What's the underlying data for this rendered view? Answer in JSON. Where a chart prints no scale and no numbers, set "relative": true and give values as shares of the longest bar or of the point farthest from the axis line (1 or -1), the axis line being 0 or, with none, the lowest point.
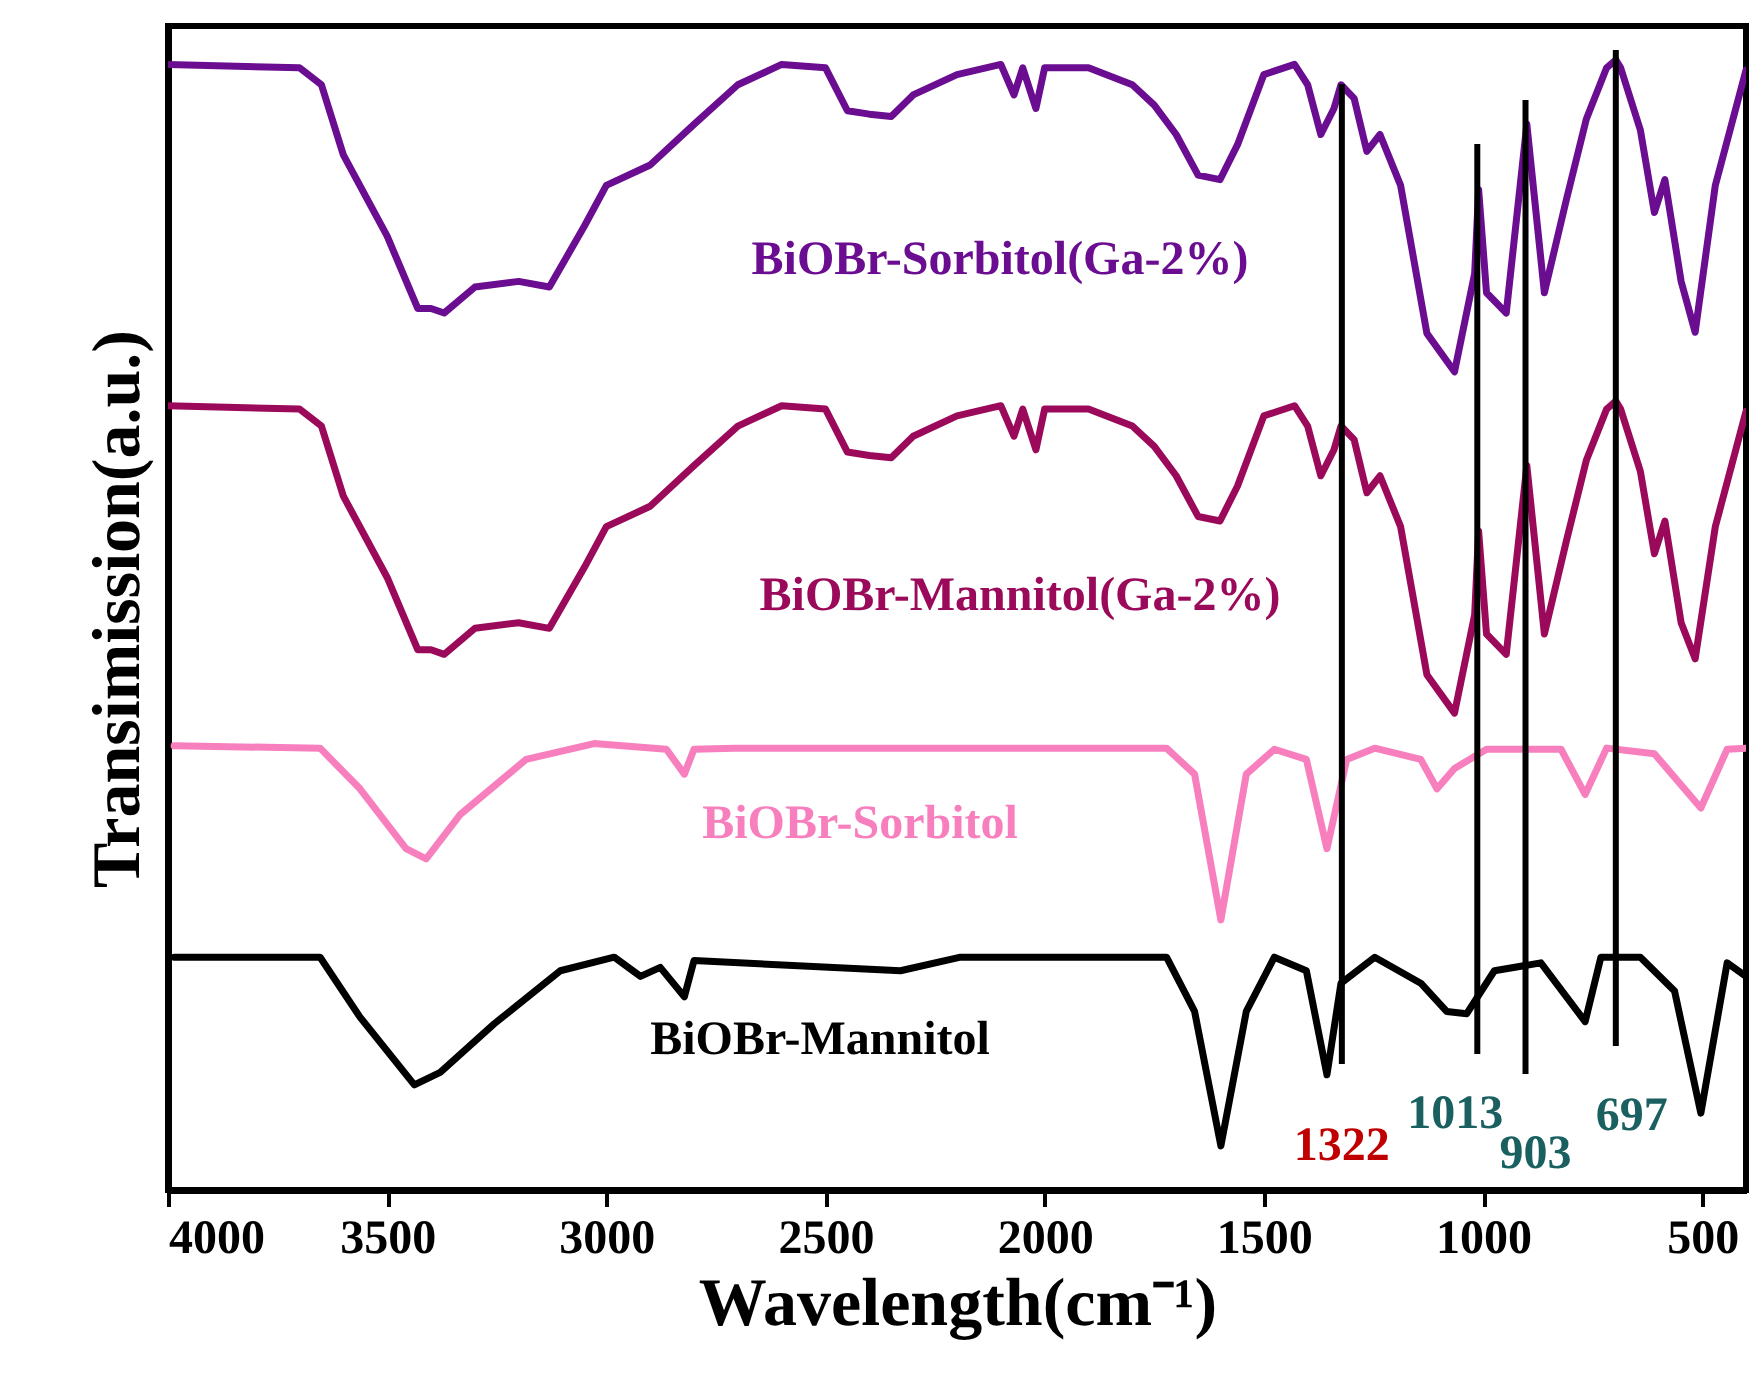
{
  "chart_data": {
    "type": "line",
    "relative": true,
    "xlabel": "Wavelength(cm⁻¹)",
    "ylabel": "Transimission(a.u.)",
    "xlim": [
      4000,
      400
    ],
    "xticks": [
      4000,
      3500,
      3000,
      2500,
      2000,
      1500,
      1000,
      500
    ],
    "tick_labels": "x",
    "grid": false,
    "marker": "none",
    "line_style": "solid",
    "series": [
      {
        "name": "BiOBr-Sorbitol(Ga-2%)",
        "color": "#6a0d91",
        "x": [
          4000,
          3700,
          3650,
          3600,
          3500,
          3430,
          3400,
          3370,
          3300,
          3200,
          3130,
          3050,
          3000,
          2900,
          2800,
          2700,
          2600,
          2500,
          2450,
          2400,
          2350,
          2300,
          2200,
          2100,
          2070,
          2050,
          2020,
          2000,
          1900,
          1800,
          1750,
          1700,
          1650,
          1600,
          1560,
          1500,
          1430,
          1400,
          1370,
          1340,
          1324,
          1294,
          1265,
          1235,
          1188,
          1128,
          1065,
          1019,
          1010,
          992,
          947,
          900,
          860,
          810,
          764,
          718,
          697,
          686,
          641,
          609,
          585,
          548,
          516,
          470,
          400
        ],
        "values": [
          0.996,
          0.993,
          0.978,
          0.916,
          0.844,
          0.78,
          0.78,
          0.776,
          0.799,
          0.804,
          0.799,
          0.853,
          0.889,
          0.907,
          0.943,
          0.978,
          0.996,
          0.993,
          0.955,
          0.952,
          0.95,
          0.969,
          0.987,
          0.996,
          0.969,
          0.993,
          0.957,
          0.993,
          0.993,
          0.978,
          0.96,
          0.934,
          0.898,
          0.894,
          0.925,
          0.987,
          0.996,
          0.978,
          0.934,
          0.957,
          0.978,
          0.966,
          0.919,
          0.934,
          0.889,
          0.758,
          0.724,
          0.811,
          0.885,
          0.794,
          0.776,
          0.943,
          0.794,
          0.876,
          0.948,
          0.993,
          1.0,
          0.993,
          0.938,
          0.865,
          0.894,
          0.804,
          0.759,
          0.889,
          0.991
        ]
      },
      {
        "name": "BiOBr-Mannitol(Ga-2%)",
        "color": "#9b0a5a",
        "x": [
          4000,
          3700,
          3650,
          3600,
          3500,
          3430,
          3400,
          3370,
          3300,
          3200,
          3130,
          3050,
          3000,
          2900,
          2800,
          2700,
          2600,
          2500,
          2450,
          2400,
          2350,
          2300,
          2200,
          2100,
          2070,
          2050,
          2020,
          2000,
          1900,
          1800,
          1750,
          1700,
          1650,
          1600,
          1560,
          1500,
          1430,
          1400,
          1370,
          1340,
          1324,
          1294,
          1265,
          1235,
          1188,
          1128,
          1065,
          1019,
          1010,
          992,
          947,
          900,
          860,
          810,
          764,
          718,
          697,
          686,
          641,
          609,
          585,
          548,
          516,
          470,
          400
        ],
        "values": [
          0.694,
          0.691,
          0.676,
          0.614,
          0.542,
          0.478,
          0.478,
          0.474,
          0.497,
          0.502,
          0.497,
          0.551,
          0.587,
          0.605,
          0.641,
          0.676,
          0.694,
          0.691,
          0.653,
          0.65,
          0.648,
          0.667,
          0.685,
          0.694,
          0.667,
          0.691,
          0.655,
          0.691,
          0.691,
          0.676,
          0.658,
          0.632,
          0.596,
          0.592,
          0.623,
          0.685,
          0.694,
          0.676,
          0.632,
          0.655,
          0.676,
          0.664,
          0.617,
          0.632,
          0.587,
          0.456,
          0.422,
          0.509,
          0.583,
          0.492,
          0.474,
          0.641,
          0.492,
          0.574,
          0.646,
          0.691,
          0.698,
          0.691,
          0.636,
          0.563,
          0.592,
          0.502,
          0.47,
          0.587,
          0.689
        ]
      },
      {
        "name": "BiOBr-Sorbitol",
        "color": "#f77fbe",
        "x": [
          3986,
          3653,
          3562,
          3457,
          3411,
          3334,
          3183,
          3028,
          2863,
          2822,
          2800,
          2708,
          2192,
          1722,
          1658,
          1598,
          1540,
          1476,
          1403,
          1356,
          1311,
          1247,
          1142,
          1105,
          1065,
          992,
          822,
          767,
          718,
          609,
          503,
          443,
          400
        ],
        "values": [
          0.393,
          0.391,
          0.355,
          0.302,
          0.293,
          0.332,
          0.381,
          0.395,
          0.39,
          0.368,
          0.39,
          0.391,
          0.391,
          0.391,
          0.368,
          0.239,
          0.368,
          0.39,
          0.381,
          0.302,
          0.381,
          0.391,
          0.381,
          0.355,
          0.373,
          0.39,
          0.39,
          0.35,
          0.391,
          0.386,
          0.338,
          0.39,
          0.391
        ]
      },
      {
        "name": "BiOBr-Mannitol",
        "color": "#000000",
        "x": [
          3986,
          3653,
          3562,
          3438,
          3379,
          3256,
          3105,
          2982,
          2922,
          2877,
          2822,
          2800,
          2329,
          2192,
          1722,
          1658,
          1598,
          1540,
          1476,
          1403,
          1356,
          1324,
          1247,
          1142,
          1083,
          1037,
          974,
          868,
          767,
          731,
          641,
          563,
          503,
          443,
          400
        ],
        "values": [
          0.206,
          0.206,
          0.153,
          0.093,
          0.104,
          0.147,
          0.194,
          0.206,
          0.189,
          0.197,
          0.171,
          0.203,
          0.194,
          0.206,
          0.206,
          0.158,
          0.039,
          0.158,
          0.206,
          0.194,
          0.102,
          0.183,
          0.206,
          0.183,
          0.158,
          0.156,
          0.194,
          0.201,
          0.149,
          0.206,
          0.206,
          0.176,
          0.068,
          0.201,
          0.189
        ]
      }
    ],
    "ref_lines": [
      {
        "axis": "x",
        "value": 1322,
        "label": "1322",
        "color": "#000000"
      },
      {
        "axis": "x",
        "value": 1013,
        "label": "1013",
        "color": "#000000"
      },
      {
        "axis": "x",
        "value": 903,
        "label": "903",
        "color": "#000000"
      },
      {
        "axis": "x",
        "value": 697,
        "label": "697",
        "color": "#000000"
      }
    ]
  }
}
